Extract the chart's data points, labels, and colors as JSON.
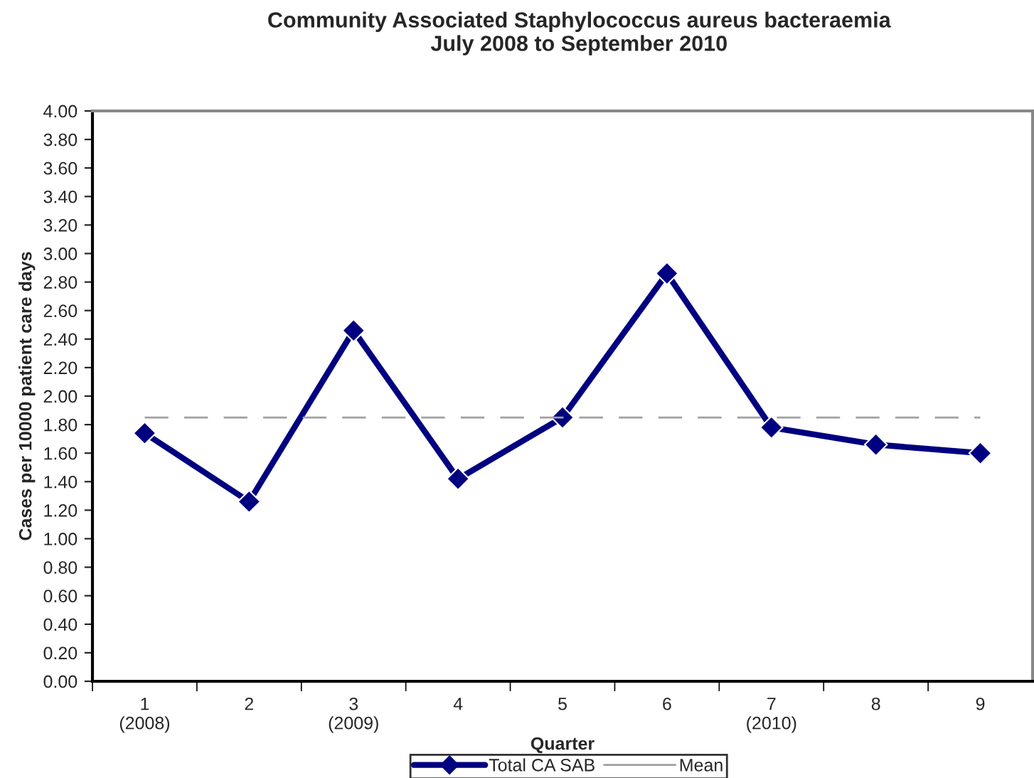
{
  "chart_data": {
    "type": "line",
    "title": "Community Associated Staphylococcus aureus bacteraemia\nJuly 2008 to September 2010",
    "xlabel": "Quarter",
    "ylabel": "Cases per 10000 patient care days",
    "categories": [
      "1\n(2008)",
      "2",
      "3\n(2009)",
      "4",
      "5",
      "6",
      "7\n(2010)",
      "8",
      "9"
    ],
    "series": [
      {
        "name": "Total CA SAB",
        "color": "#000080",
        "values": [
          1.74,
          1.26,
          2.46,
          1.42,
          1.85,
          2.86,
          1.78,
          1.66,
          1.6
        ],
        "marker": "diamond",
        "line_style": "solid"
      },
      {
        "name": "Mean",
        "color": "#a0a0a0",
        "values": [
          1.85,
          1.85,
          1.85,
          1.85,
          1.85,
          1.85,
          1.85,
          1.85,
          1.85
        ],
        "marker": "none",
        "line_style": "dashed"
      }
    ],
    "ylim": [
      0,
      4
    ],
    "yticks": [
      {
        "value": 0,
        "label": "0.00"
      },
      {
        "value": 0.2,
        "label": "0.20"
      },
      {
        "value": 0.4,
        "label": "0.40"
      },
      {
        "value": 0.6,
        "label": "0.60"
      },
      {
        "value": 0.8,
        "label": "0.80"
      },
      {
        "value": 1,
        "label": "1.00"
      },
      {
        "value": 1.2,
        "label": "1.20"
      },
      {
        "value": 1.4,
        "label": "1.40"
      },
      {
        "value": 1.6,
        "label": "1.60"
      },
      {
        "value": 1.8,
        "label": "1.80"
      },
      {
        "value": 2,
        "label": "2.00"
      },
      {
        "value": 2.2,
        "label": "2.20"
      },
      {
        "value": 2.4,
        "label": "2.40"
      },
      {
        "value": 2.6,
        "label": "2.60"
      },
      {
        "value": 2.8,
        "label": "2.80"
      },
      {
        "value": 3,
        "label": "3.00"
      },
      {
        "value": 3.2,
        "label": "3.20"
      },
      {
        "value": 3.4,
        "label": "3.40"
      },
      {
        "value": 3.6,
        "label": "3.60"
      },
      {
        "value": 3.8,
        "label": "3.80"
      },
      {
        "value": 4,
        "label": "4.00"
      }
    ],
    "grid": false,
    "legend": "bottom"
  }
}
